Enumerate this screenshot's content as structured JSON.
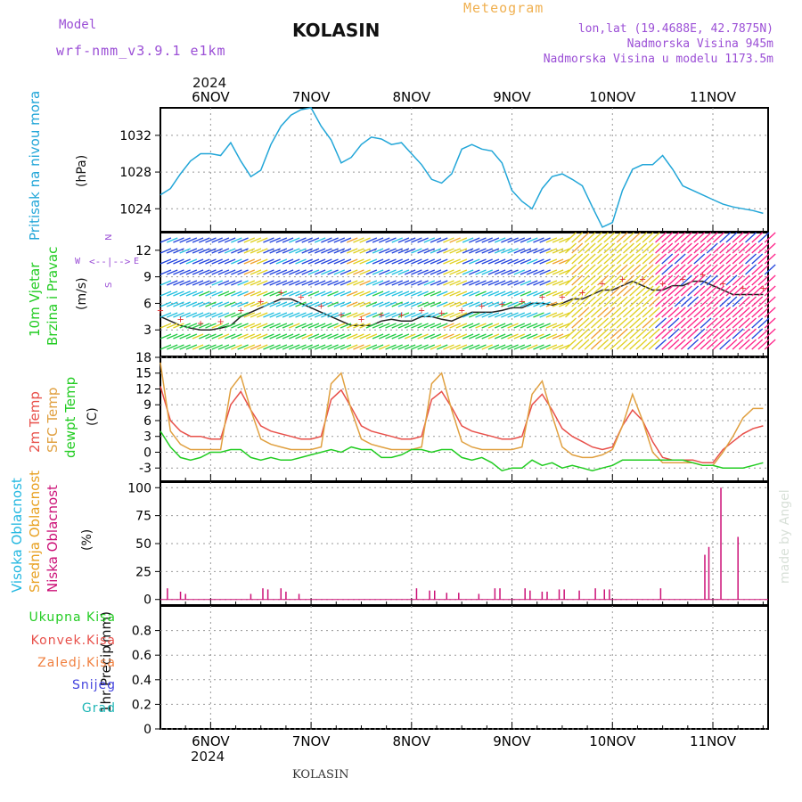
{
  "header": {
    "model_label": "Model",
    "model_name": "wrf-nmm_v3.9.1 e1km",
    "location": "KOLASIN",
    "chart_title": "Meteogram",
    "lonlat": "lon,lat (19.4688E, 42.7875N)",
    "elevation": "Nadmorska Visina 945m",
    "elevation_model": "Nadmorska Visina u modelu 1173.5m",
    "year_top": "2024",
    "year_bottom": "2024",
    "footer": "KOLASIN",
    "credit": "made by Angel"
  },
  "colors": {
    "pressure": "#22a6d8",
    "temp2m": "#e8504a",
    "sfc": "#e0a040",
    "dewpt": "#22cc22",
    "cloud_high": "#22b7e0",
    "cloud_mid": "#e8a020",
    "cloud_low": "#cc1177",
    "title_purple": "#9b4fd6",
    "orange": "#f0b050"
  },
  "chart_data": [
    {
      "type": "line",
      "panel": "pressure",
      "ylabel_main": "Pritisak na nivou mora",
      "ylabel_unit": "(hPa)",
      "x_ticks": [
        "6NOV",
        "7NOV",
        "8NOV",
        "9NOV",
        "10NOV",
        "11NOV"
      ],
      "ylim": [
        1021.5,
        1035.0
      ],
      "yticks": [
        1024,
        1028,
        1032
      ],
      "grid": true,
      "series": [
        {
          "x": [
            -0.5,
            -0.4,
            -0.3,
            -0.2,
            -0.1,
            0,
            0.1,
            0.2,
            0.3,
            0.4,
            0.5,
            0.6,
            0.7,
            0.8,
            0.9,
            1.0,
            1.1,
            1.2,
            1.3,
            1.4,
            1.5,
            1.6,
            1.7,
            1.8,
            1.9,
            2.0,
            2.1,
            2.2,
            2.3,
            2.4,
            2.5,
            2.6,
            2.7,
            2.8,
            2.9,
            3.0,
            3.1,
            3.2,
            3.3,
            3.4,
            3.5,
            3.6,
            3.7,
            3.8,
            3.9,
            4.0,
            4.1,
            4.2,
            4.3,
            4.4,
            4.5,
            4.6,
            4.7,
            4.8,
            4.9,
            5.0,
            5.1,
            5.2,
            5.3,
            5.4,
            5.5
          ],
          "values": [
            1025.5,
            1026.2,
            1027.8,
            1029.2,
            1030.0,
            1030.0,
            1029.8,
            1031.2,
            1029.2,
            1027.5,
            1028.2,
            1031.0,
            1033.0,
            1034.2,
            1034.8,
            1035.0,
            1033.0,
            1031.5,
            1029.0,
            1029.6,
            1031.0,
            1031.8,
            1031.6,
            1031.0,
            1031.2,
            1030.0,
            1028.8,
            1027.2,
            1026.8,
            1027.8,
            1030.5,
            1031.0,
            1030.5,
            1030.3,
            1029.0,
            1026.0,
            1024.8,
            1024.0,
            1026.2,
            1027.5,
            1027.8,
            1027.2,
            1026.5,
            1024.2,
            1022.0,
            1022.5,
            1026.0,
            1028.3,
            1028.8,
            1028.8,
            1029.8,
            1028.3,
            1026.5,
            1026.0,
            1025.5,
            1025.0,
            1024.5,
            1024.2,
            1024.0,
            1023.8,
            1023.5
          ]
        }
      ]
    },
    {
      "type": "line",
      "panel": "wind",
      "ylabel_main": "10m Vjetar",
      "ylabel_second": "Brzina i Pravac",
      "ylabel_unit": "(m/s)",
      "compass": {
        "n": "N",
        "s": "S",
        "w": "W",
        "e": "E"
      },
      "ylim": [
        0,
        14
      ],
      "yticks": [
        3,
        6,
        9,
        12
      ],
      "grid": true,
      "series": [
        {
          "name": "speed",
          "x": [
            -0.5,
            -0.4,
            -0.3,
            -0.2,
            -0.1,
            0,
            0.1,
            0.2,
            0.3,
            0.4,
            0.5,
            0.6,
            0.7,
            0.8,
            0.9,
            1.0,
            1.1,
            1.2,
            1.3,
            1.4,
            1.5,
            1.6,
            1.7,
            1.8,
            1.9,
            2.0,
            2.1,
            2.2,
            2.3,
            2.4,
            2.5,
            2.6,
            2.7,
            2.8,
            2.9,
            3.0,
            3.1,
            3.2,
            3.3,
            3.4,
            3.5,
            3.6,
            3.7,
            3.8,
            3.9,
            4.0,
            4.1,
            4.2,
            4.3,
            4.4,
            4.5,
            4.6,
            4.7,
            4.8,
            4.9,
            5.0,
            5.1,
            5.2,
            5.3,
            5.4,
            5.5
          ],
          "values": [
            4.5,
            4.0,
            3.5,
            3.2,
            3.0,
            3.0,
            3.2,
            3.5,
            4.5,
            5.0,
            5.5,
            6.0,
            6.5,
            6.5,
            6.0,
            5.5,
            5.0,
            4.5,
            4.0,
            3.5,
            3.5,
            3.5,
            4.0,
            4.2,
            4.0,
            4.0,
            4.5,
            4.5,
            4.2,
            4.0,
            4.5,
            5.0,
            5.0,
            5.0,
            5.2,
            5.5,
            5.5,
            6.0,
            6.0,
            5.8,
            6.0,
            6.5,
            6.5,
            7.0,
            7.5,
            7.5,
            8.0,
            8.5,
            8.0,
            7.5,
            7.5,
            8.0,
            8.0,
            8.5,
            8.5,
            8.0,
            7.5,
            7.0,
            7.0,
            7.0,
            7.0
          ]
        }
      ]
    },
    {
      "type": "line",
      "panel": "temperature",
      "ylabel_main": "2m Temp",
      "ylabel_second": "SFC Temp",
      "ylabel_third": "dewpt Temp",
      "ylabel_unit": "(C)",
      "ylim": [
        -5.5,
        18
      ],
      "yticks": [
        -3,
        0,
        3,
        6,
        9,
        12,
        15,
        18
      ],
      "grid": true,
      "series": [
        {
          "name": "2m Temp",
          "x": [
            -0.5,
            -0.4,
            -0.3,
            -0.2,
            -0.1,
            0,
            0.1,
            0.2,
            0.3,
            0.4,
            0.5,
            0.6,
            0.7,
            0.8,
            0.9,
            1.0,
            1.1,
            1.2,
            1.3,
            1.4,
            1.5,
            1.6,
            1.7,
            1.8,
            1.9,
            2.0,
            2.1,
            2.2,
            2.3,
            2.4,
            2.5,
            2.6,
            2.7,
            2.8,
            2.9,
            3.0,
            3.1,
            3.2,
            3.3,
            3.4,
            3.5,
            3.6,
            3.7,
            3.8,
            3.9,
            4.0,
            4.1,
            4.2,
            4.3,
            4.4,
            4.5,
            4.6,
            4.7,
            4.8,
            4.9,
            5.0,
            5.1,
            5.2,
            5.3,
            5.4,
            5.5
          ],
          "values": [
            12.5,
            6.0,
            4.0,
            3.0,
            3.0,
            2.5,
            2.5,
            9.0,
            11.5,
            8.0,
            5.0,
            4.0,
            3.5,
            3.0,
            2.5,
            2.5,
            3.0,
            10.0,
            11.8,
            8.5,
            5.0,
            4.0,
            3.5,
            3.0,
            2.5,
            2.5,
            3.0,
            10.0,
            11.5,
            8.5,
            5.0,
            4.0,
            3.5,
            3.0,
            2.5,
            2.5,
            3.0,
            9.0,
            11.0,
            8.0,
            4.5,
            3.0,
            2.0,
            1.0,
            0.5,
            1.0,
            5.0,
            8.0,
            6.0,
            2.0,
            -1.0,
            -1.5,
            -1.5,
            -1.5,
            -2.0,
            -2.0,
            0.5,
            2.0,
            3.5,
            4.5,
            5.0
          ]
        },
        {
          "name": "SFC Temp",
          "x": [
            -0.5,
            -0.4,
            -0.3,
            -0.2,
            -0.1,
            0,
            0.1,
            0.2,
            0.3,
            0.4,
            0.5,
            0.6,
            0.7,
            0.8,
            0.9,
            1.0,
            1.1,
            1.2,
            1.3,
            1.4,
            1.5,
            1.6,
            1.7,
            1.8,
            1.9,
            2.0,
            2.1,
            2.2,
            2.3,
            2.4,
            2.5,
            2.6,
            2.7,
            2.8,
            2.9,
            3.0,
            3.1,
            3.2,
            3.3,
            3.4,
            3.5,
            3.6,
            3.7,
            3.8,
            3.9,
            4.0,
            4.1,
            4.2,
            4.3,
            4.4,
            4.5,
            4.6,
            4.7,
            4.8,
            4.9,
            5.0,
            5.1,
            5.2,
            5.3,
            5.4,
            5.5
          ],
          "values": [
            17.0,
            4.0,
            1.5,
            0.5,
            0.5,
            0.5,
            0.5,
            12.0,
            14.5,
            8.0,
            2.5,
            1.5,
            1.0,
            0.5,
            0.5,
            0.5,
            1.0,
            13.0,
            15.0,
            8.0,
            2.5,
            1.5,
            1.0,
            0.5,
            0.5,
            0.5,
            1.0,
            13.0,
            15.0,
            8.0,
            2.0,
            1.0,
            0.5,
            0.5,
            0.5,
            0.5,
            1.0,
            11.0,
            13.5,
            7.0,
            1.0,
            -0.5,
            -1.0,
            -1.0,
            -0.5,
            0.5,
            5.0,
            11.0,
            6.0,
            0.0,
            -2.0,
            -2.0,
            -2.0,
            -2.0,
            -2.5,
            -2.5,
            0.0,
            3.0,
            6.5,
            8.3,
            8.3
          ]
        },
        {
          "name": "dewpt Temp",
          "x": [
            -0.5,
            -0.4,
            -0.3,
            -0.2,
            -0.1,
            0,
            0.1,
            0.2,
            0.3,
            0.4,
            0.5,
            0.6,
            0.7,
            0.8,
            0.9,
            1.0,
            1.1,
            1.2,
            1.3,
            1.4,
            1.5,
            1.6,
            1.7,
            1.8,
            1.9,
            2.0,
            2.1,
            2.2,
            2.3,
            2.4,
            2.5,
            2.6,
            2.7,
            2.8,
            2.9,
            3.0,
            3.1,
            3.2,
            3.3,
            3.4,
            3.5,
            3.6,
            3.7,
            3.8,
            3.9,
            4.0,
            4.1,
            4.2,
            4.3,
            4.4,
            4.5,
            4.6,
            4.7,
            4.8,
            4.9,
            5.0,
            5.1,
            5.2,
            5.3,
            5.4,
            5.5
          ],
          "values": [
            4.0,
            1.0,
            -1.0,
            -1.5,
            -1.0,
            0.0,
            0.0,
            0.5,
            0.5,
            -1.0,
            -1.5,
            -1.0,
            -1.5,
            -1.5,
            -1.0,
            -0.5,
            0.0,
            0.5,
            0.0,
            1.0,
            0.5,
            0.5,
            -1.0,
            -1.0,
            -0.5,
            0.5,
            0.5,
            0.0,
            0.5,
            0.5,
            -1.0,
            -1.5,
            -1.0,
            -2.0,
            -3.5,
            -3.0,
            -3.0,
            -1.5,
            -2.5,
            -2.0,
            -3.0,
            -2.5,
            -3.0,
            -3.5,
            -3.0,
            -2.5,
            -1.5,
            -1.5,
            -1.5,
            -1.5,
            -1.5,
            -1.5,
            -1.5,
            -2.0,
            -2.5,
            -2.5,
            -3.0,
            -3.0,
            -3.0,
            -2.5,
            -2.0
          ]
        }
      ]
    },
    {
      "type": "bar",
      "panel": "cloudiness",
      "ylabel_main": "Visoka Oblacnost",
      "ylabel_second": "Srednja Oblacnost",
      "ylabel_third": "Niska Oblacnost",
      "ylabel_unit": "(%)",
      "ylim": [
        -5,
        105
      ],
      "yticks": [
        0,
        25,
        50,
        75,
        100
      ],
      "grid": true,
      "series": [
        {
          "name": "Niska Oblacnost",
          "x": [
            -0.43,
            -0.3,
            -0.25,
            0.4,
            0.52,
            0.57,
            0.7,
            0.75,
            0.88,
            2.05,
            2.18,
            2.23,
            2.35,
            2.47,
            2.67,
            2.83,
            2.88,
            3.13,
            3.18,
            3.3,
            3.35,
            3.47,
            3.52,
            3.67,
            3.83,
            3.92,
            3.97,
            4.48,
            4.92,
            4.96,
            5.08,
            5.25
          ],
          "values": [
            10,
            7,
            5,
            5,
            10,
            9,
            10,
            7,
            5,
            10,
            8,
            8,
            6,
            6,
            5,
            10,
            10,
            10,
            8,
            7,
            7,
            9,
            9,
            8,
            10,
            9,
            9,
            10,
            40,
            47,
            100,
            56
          ]
        }
      ]
    },
    {
      "type": "bar",
      "panel": "precipitation",
      "ylabel_main": "1hr Precip",
      "ylabel_unit": "(mm)",
      "legend": [
        "Ukupna Kisa",
        "Konvek.Kisa",
        "Zaledj.Kisa",
        "Snijeg",
        "Grad"
      ],
      "ylim": [
        0,
        1.0
      ],
      "yticks": [
        0,
        0.2,
        0.4,
        0.6,
        0.8
      ],
      "grid": true,
      "series": []
    }
  ]
}
